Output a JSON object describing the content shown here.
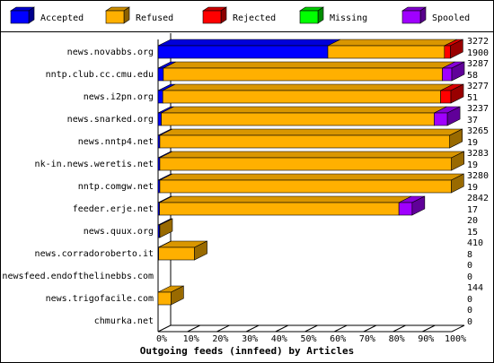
{
  "chart_data": {
    "type": "bar",
    "orientation": "horizontal",
    "stacked": true,
    "title": "Outgoing feeds (innfeed) by Articles",
    "categories": [
      "news.novabbs.org",
      "nntp.club.cc.cmu.edu",
      "news.i2pn.org",
      "news.snarked.org",
      "news.nntp4.net",
      "nk-in.news.weretis.net",
      "nntp.comgw.net",
      "feeder.erje.net",
      "news.quux.org",
      "news.corradoroberto.it",
      "newsfeed.endofthelinebbs.com",
      "news.trigofacile.com",
      "chmurka.net"
    ],
    "series": [
      {
        "name": "Accepted",
        "color": "#0000ff",
        "values": [
          57.8,
          1.8,
          1.6,
          1.1,
          0.6,
          0.6,
          0.6,
          0.5,
          0.5,
          0.2,
          0,
          0,
          0
        ]
      },
      {
        "name": "Refused",
        "color": "#ffb000",
        "values": [
          39.7,
          95,
          94.6,
          92.9,
          98.7,
          99.3,
          99.2,
          81.5,
          0.1,
          12.2,
          0,
          4.4,
          0
        ]
      },
      {
        "name": "Rejected",
        "color": "#ff0000",
        "values": [
          2,
          0,
          3.5,
          0,
          0,
          0,
          0,
          0,
          0,
          0,
          0,
          0,
          0
        ]
      },
      {
        "name": "Missing",
        "color": "#00ff00",
        "values": [
          0,
          0,
          0,
          0,
          0,
          0,
          0,
          0,
          0,
          0,
          0,
          0,
          0
        ]
      },
      {
        "name": "Spooled",
        "color": "#a000ff",
        "values": [
          0,
          3.2,
          0,
          4.5,
          0,
          0,
          0,
          4.5,
          0,
          0,
          0,
          0,
          0
        ]
      }
    ],
    "offered": [
      3272,
      3287,
      3277,
      3237,
      3265,
      3283,
      3280,
      2842,
      20,
      410,
      0,
      144,
      0
    ],
    "accepted": [
      1900,
      58,
      51,
      37,
      19,
      19,
      19,
      17,
      15,
      8,
      0,
      0,
      0
    ],
    "xlim": [
      0,
      100
    ],
    "xticks": [
      {
        "value": 0,
        "label": "0%"
      },
      {
        "value": 10,
        "label": "10%"
      },
      {
        "value": 20,
        "label": "20%"
      },
      {
        "value": 30,
        "label": "30%"
      },
      {
        "value": 40,
        "label": "40%"
      },
      {
        "value": 50,
        "label": "50%"
      },
      {
        "value": 60,
        "label": "60%"
      },
      {
        "value": 70,
        "label": "70%"
      },
      {
        "value": 80,
        "label": "80%"
      },
      {
        "value": 90,
        "label": "90%"
      },
      {
        "value": 100,
        "label": "100%"
      }
    ]
  }
}
